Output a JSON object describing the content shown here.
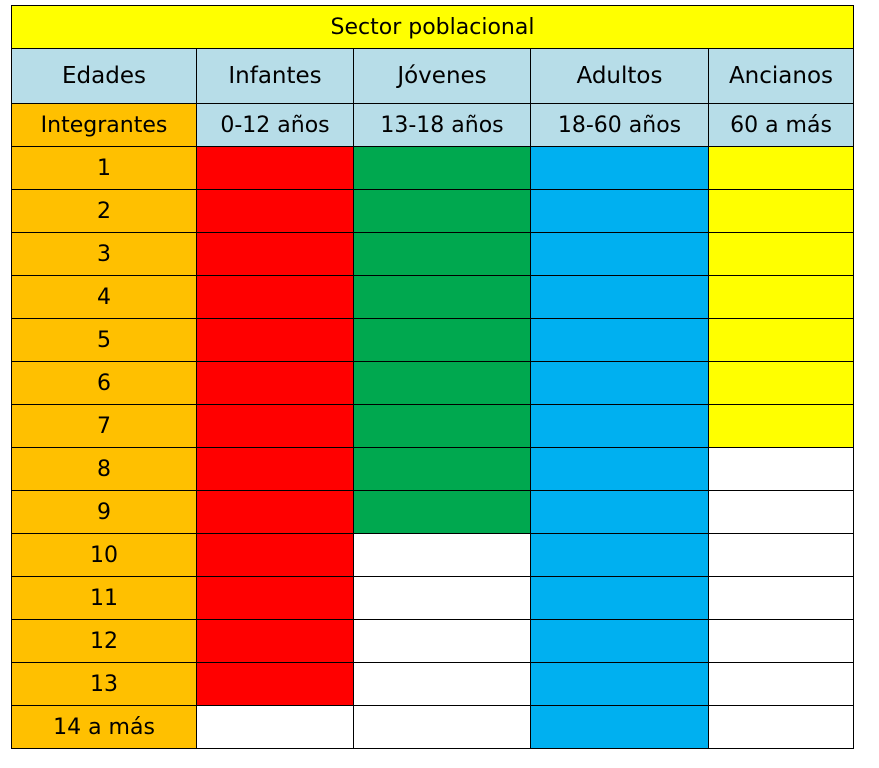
{
  "chart_data": {
    "type": "table",
    "title": "Sector poblacional",
    "row_header_label": "Edades",
    "range_header_label": "Integrantes",
    "columns": [
      {
        "name": "Infantes",
        "range": "0-12 años",
        "color": "#ff0000",
        "filled": 13
      },
      {
        "name": "Jóvenes",
        "range": "13-18 años",
        "color": "#00a84f",
        "filled": 9
      },
      {
        "name": "Adultos",
        "range": "18-60 años",
        "color": "#00b0f0",
        "filled": 14
      },
      {
        "name": "Ancianos",
        "range": "60 a más",
        "color": "#ffff00",
        "filled": 7
      }
    ],
    "rows": [
      "1",
      "2",
      "3",
      "4",
      "5",
      "6",
      "7",
      "8",
      "9",
      "10",
      "11",
      "12",
      "13",
      "14 a más"
    ]
  },
  "colors": {
    "title_bg": "#ffff00",
    "header_bg": "#b7dde8",
    "integrantes_bg": "#ffc000",
    "empty": "#ffffff",
    "border": "#000000"
  }
}
